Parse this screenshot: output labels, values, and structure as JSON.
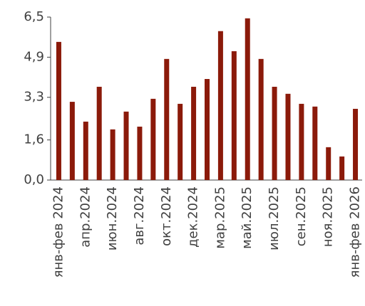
{
  "chart_data": {
    "type": "bar",
    "categories": [
      "янв-фев 2024",
      null,
      "апр.2024",
      null,
      "июн.2024",
      null,
      "авг.2024",
      null,
      "окт.2024",
      null,
      "дек.2024",
      null,
      "мар.2025",
      null,
      "май.2025",
      null,
      "июл.2025",
      null,
      "сен.2025",
      null,
      "ноя.2025",
      null,
      "янв-фев 2026"
    ],
    "values": [
      5.51,
      3.12,
      2.33,
      3.72,
      2.02,
      2.73,
      2.13,
      3.24,
      4.83,
      3.04,
      3.72,
      4.03,
      5.94,
      5.14,
      6.45,
      4.83,
      3.72,
      3.44,
      3.04,
      2.93,
      1.31,
      0.94,
      2.84
    ],
    "color": "#8b1a0a",
    "ylim": [
      0,
      6.5
    ],
    "yticks": [
      {
        "value": 0,
        "label": "0,0"
      },
      {
        "value": 1.6,
        "label": "1,6"
      },
      {
        "value": 3.3,
        "label": "3,3"
      },
      {
        "value": 4.9,
        "label": "4,9"
      },
      {
        "value": 6.5,
        "label": "6,5"
      }
    ],
    "grid": false
  }
}
